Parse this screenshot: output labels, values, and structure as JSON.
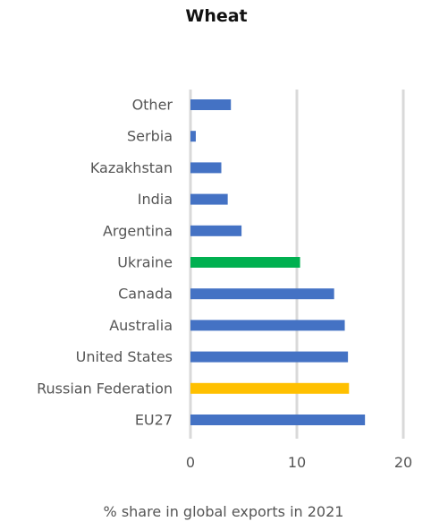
{
  "chart_data": {
    "type": "bar",
    "orientation": "horizontal",
    "title": "Wheat",
    "xlabel": "% share in global exports in 2021",
    "ylabel": "",
    "xlim": [
      0,
      20
    ],
    "xticks": [
      0,
      10,
      20
    ],
    "grid": true,
    "categories": [
      "Other",
      "Serbia",
      "Kazakhstan",
      "India",
      "Argentina",
      "Ukraine",
      "Canada",
      "Australia",
      "United States",
      "Russian Federation",
      "EU27"
    ],
    "values": [
      3.8,
      0.5,
      2.9,
      3.5,
      4.8,
      10.3,
      13.5,
      14.5,
      14.8,
      14.9,
      16.4
    ],
    "colors": {
      "default": "#4472c4",
      "Ukraine": "#00b050",
      "Russian Federation": "#ffc000",
      "grid": "#d9d9d9"
    }
  }
}
